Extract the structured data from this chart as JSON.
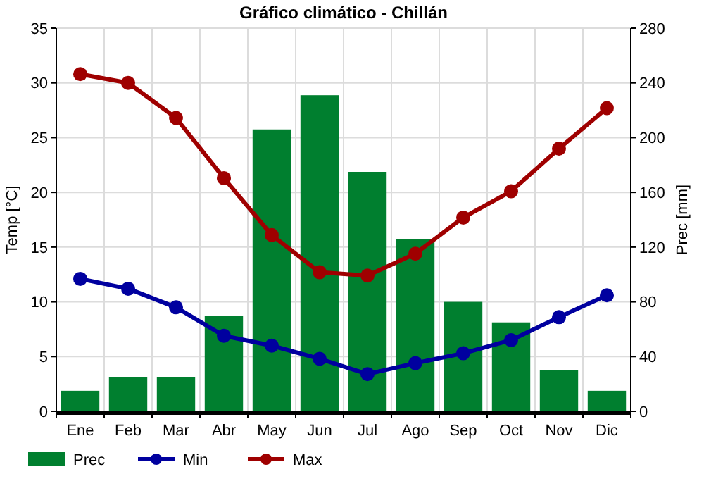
{
  "chart_data": {
    "type": "bar",
    "title": "Gráfico climático - Chillán",
    "ylabel": "Temp [°C]",
    "y2label": "Prec [mm]",
    "categories": [
      "Ene",
      "Feb",
      "Mar",
      "Abr",
      "May",
      "Jun",
      "Jul",
      "Ago",
      "Sep",
      "Oct",
      "Nov",
      "Dic"
    ],
    "series": [
      {
        "name": "Prec",
        "axis": "y2",
        "color": "#007f2f",
        "values": [
          15,
          25,
          25,
          70,
          206,
          231,
          175,
          126,
          80,
          65,
          30,
          15
        ]
      },
      {
        "name": "Min",
        "type": "line",
        "color": "#00009f",
        "values": [
          12.1,
          11.2,
          9.5,
          6.9,
          6.0,
          4.8,
          3.4,
          4.4,
          5.3,
          6.5,
          8.6,
          10.6
        ]
      },
      {
        "name": "Max",
        "type": "line",
        "color": "#9f0000",
        "values": [
          30.8,
          30.0,
          26.8,
          21.3,
          16.1,
          12.7,
          12.4,
          14.4,
          17.7,
          20.1,
          24.0,
          27.7
        ]
      }
    ],
    "ylim": [
      0,
      35
    ],
    "yticks": [
      0,
      5,
      10,
      15,
      20,
      25,
      30,
      35
    ],
    "y2lim": [
      0,
      280
    ],
    "y2ticks": [
      0,
      40,
      80,
      120,
      160,
      200,
      240,
      280
    ],
    "grid": true,
    "legend": "bottom",
    "marker": "circle"
  }
}
